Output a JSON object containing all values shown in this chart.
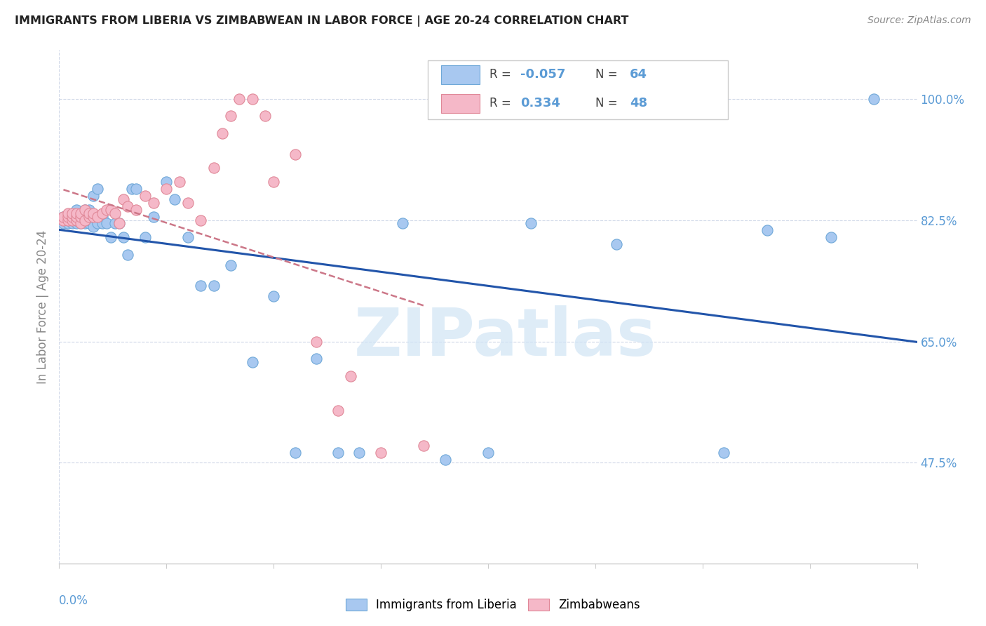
{
  "title": "IMMIGRANTS FROM LIBERIA VS ZIMBABWEAN IN LABOR FORCE | AGE 20-24 CORRELATION CHART",
  "source": "Source: ZipAtlas.com",
  "ylabel": "In Labor Force | Age 20-24",
  "legend_blue_r": "-0.057",
  "legend_blue_n": "64",
  "legend_pink_r": "0.334",
  "legend_pink_n": "48",
  "legend_label_blue": "Immigrants from Liberia",
  "legend_label_pink": "Zimbabweans",
  "watermark": "ZIPatlas",
  "blue_color": "#a8c8f0",
  "blue_edge": "#6fa8d8",
  "pink_color": "#f5b8c8",
  "pink_edge": "#e08898",
  "trend_blue_color": "#2255aa",
  "trend_pink_color": "#cc7788",
  "right_ytick_positions": [
    0.475,
    0.65,
    0.825,
    1.0
  ],
  "right_ytick_labels": [
    "47.5%",
    "65.0%",
    "82.5%",
    "100.0%"
  ],
  "xlim": [
    0.0,
    0.2
  ],
  "ylim": [
    0.33,
    1.07
  ],
  "blue_x": [
    0.001,
    0.001,
    0.001,
    0.002,
    0.002,
    0.002,
    0.002,
    0.003,
    0.003,
    0.003,
    0.003,
    0.003,
    0.004,
    0.004,
    0.004,
    0.004,
    0.005,
    0.005,
    0.005,
    0.006,
    0.006,
    0.006,
    0.006,
    0.007,
    0.007,
    0.007,
    0.008,
    0.008,
    0.008,
    0.009,
    0.009,
    0.01,
    0.01,
    0.011,
    0.012,
    0.013,
    0.014,
    0.015,
    0.016,
    0.017,
    0.018,
    0.02,
    0.022,
    0.025,
    0.027,
    0.03,
    0.033,
    0.036,
    0.04,
    0.045,
    0.05,
    0.055,
    0.06,
    0.065,
    0.07,
    0.08,
    0.09,
    0.1,
    0.11,
    0.13,
    0.155,
    0.165,
    0.18,
    0.19
  ],
  "blue_y": [
    0.825,
    0.83,
    0.82,
    0.825,
    0.83,
    0.825,
    0.82,
    0.825,
    0.83,
    0.825,
    0.82,
    0.835,
    0.82,
    0.825,
    0.83,
    0.84,
    0.82,
    0.83,
    0.825,
    0.82,
    0.825,
    0.835,
    0.84,
    0.82,
    0.825,
    0.84,
    0.815,
    0.83,
    0.86,
    0.82,
    0.87,
    0.83,
    0.82,
    0.82,
    0.8,
    0.82,
    0.82,
    0.8,
    0.775,
    0.87,
    0.87,
    0.8,
    0.83,
    0.88,
    0.855,
    0.8,
    0.73,
    0.73,
    0.76,
    0.62,
    0.715,
    0.49,
    0.625,
    0.49,
    0.49,
    0.82,
    0.48,
    0.49,
    0.82,
    0.79,
    0.49,
    0.81,
    0.8,
    1.0
  ],
  "pink_x": [
    0.001,
    0.001,
    0.002,
    0.002,
    0.002,
    0.003,
    0.003,
    0.003,
    0.004,
    0.004,
    0.004,
    0.005,
    0.005,
    0.005,
    0.006,
    0.006,
    0.007,
    0.007,
    0.008,
    0.008,
    0.009,
    0.01,
    0.011,
    0.012,
    0.013,
    0.014,
    0.015,
    0.016,
    0.018,
    0.02,
    0.022,
    0.025,
    0.028,
    0.03,
    0.033,
    0.036,
    0.038,
    0.04,
    0.042,
    0.045,
    0.048,
    0.05,
    0.055,
    0.06,
    0.065,
    0.068,
    0.075,
    0.085
  ],
  "pink_y": [
    0.825,
    0.83,
    0.825,
    0.83,
    0.835,
    0.825,
    0.83,
    0.835,
    0.825,
    0.83,
    0.835,
    0.82,
    0.83,
    0.835,
    0.825,
    0.84,
    0.83,
    0.835,
    0.83,
    0.835,
    0.83,
    0.835,
    0.84,
    0.84,
    0.835,
    0.82,
    0.855,
    0.845,
    0.84,
    0.86,
    0.85,
    0.87,
    0.88,
    0.85,
    0.825,
    0.9,
    0.95,
    0.975,
    1.0,
    1.0,
    0.975,
    0.88,
    0.92,
    0.65,
    0.55,
    0.6,
    0.49,
    0.5
  ],
  "xtick_label_color": "#5b9bd5",
  "ytick_label_color": "#5b9bd5",
  "grid_color": "#d0d8e8",
  "spine_color": "#cccccc"
}
